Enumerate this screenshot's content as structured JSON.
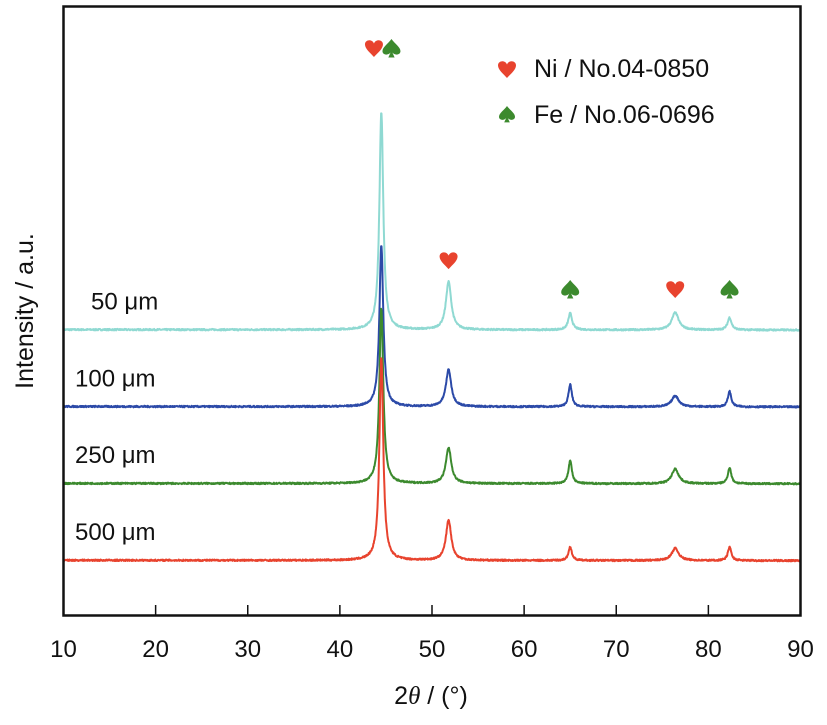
{
  "chart_data": {
    "type": "line",
    "title": "",
    "xlabel_prefix": "2",
    "xlabel_symbol": "θ",
    "xlabel_suffix": " / (°)",
    "xlabel": "2θ / (°)",
    "ylabel": "Intensity / a.u.",
    "xlim": [
      10,
      90
    ],
    "xticks": [
      10,
      20,
      30,
      40,
      50,
      60,
      70,
      80,
      90
    ],
    "yticks_shown": false,
    "grid": false,
    "legend_placement": "top-right",
    "legend": [
      {
        "symbol": "heart",
        "label": "Ni / No.04-0850",
        "color": "#e8432e"
      },
      {
        "symbol": "spade",
        "label": "Fe / No.06-0696",
        "color": "#3c8a2e"
      }
    ],
    "peak_markers": [
      {
        "x": 43.7,
        "symbol": "heart",
        "phase": "Ni"
      },
      {
        "x": 45.6,
        "symbol": "spade",
        "phase": "Fe"
      },
      {
        "x": 51.8,
        "symbol": "heart",
        "phase": "Ni"
      },
      {
        "x": 65.0,
        "symbol": "spade",
        "phase": "Fe"
      },
      {
        "x": 76.4,
        "symbol": "heart",
        "phase": "Ni"
      },
      {
        "x": 82.3,
        "symbol": "spade",
        "phase": "Fe"
      }
    ],
    "series": [
      {
        "name": "50 μm",
        "label_num": "50",
        "label_unit": "μm",
        "color": "#8fd9d2",
        "offset": 3.75,
        "peaks": [
          {
            "x": 44.5,
            "height": 3.55,
            "width": 0.25
          },
          {
            "x": 51.8,
            "height": 0.78,
            "width": 0.35
          },
          {
            "x": 65.0,
            "height": 0.27,
            "width": 0.25
          },
          {
            "x": 76.4,
            "height": 0.28,
            "width": 0.45
          },
          {
            "x": 82.3,
            "height": 0.2,
            "width": 0.25
          }
        ]
      },
      {
        "name": "100 μm",
        "label_num": "100",
        "label_unit": "μm",
        "color": "#2c4aa8",
        "offset": 2.5,
        "peaks": [
          {
            "x": 44.5,
            "height": 2.62,
            "width": 0.25
          },
          {
            "x": 51.8,
            "height": 0.6,
            "width": 0.35
          },
          {
            "x": 65.0,
            "height": 0.36,
            "width": 0.22
          },
          {
            "x": 76.4,
            "height": 0.18,
            "width": 0.45
          },
          {
            "x": 82.3,
            "height": 0.25,
            "width": 0.22
          }
        ]
      },
      {
        "name": "250 μm",
        "label_num": "250",
        "label_unit": "μm",
        "color": "#3c8a2e",
        "offset": 1.25,
        "peaks": [
          {
            "x": 44.5,
            "height": 2.85,
            "width": 0.25
          },
          {
            "x": 51.8,
            "height": 0.58,
            "width": 0.35
          },
          {
            "x": 65.0,
            "height": 0.38,
            "width": 0.22
          },
          {
            "x": 76.4,
            "height": 0.24,
            "width": 0.45
          },
          {
            "x": 82.3,
            "height": 0.26,
            "width": 0.22
          }
        ]
      },
      {
        "name": "500 μm",
        "label_num": "500",
        "label_unit": "μm",
        "color": "#e8432e",
        "offset": 0.0,
        "peaks": [
          {
            "x": 44.5,
            "height": 3.3,
            "width": 0.25
          },
          {
            "x": 51.8,
            "height": 0.65,
            "width": 0.35
          },
          {
            "x": 65.0,
            "height": 0.22,
            "width": 0.22
          },
          {
            "x": 76.4,
            "height": 0.2,
            "width": 0.45
          },
          {
            "x": 82.3,
            "height": 0.22,
            "width": 0.22
          }
        ]
      }
    ]
  }
}
